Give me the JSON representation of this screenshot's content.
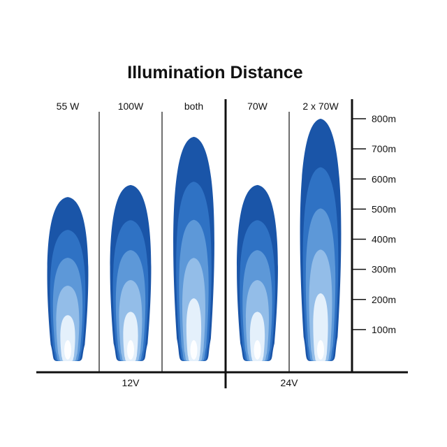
{
  "chart_data": {
    "type": "bar",
    "title": "Illumination Distance",
    "categories": [
      "55 W",
      "100W",
      "both",
      "70W",
      "2 x 70W"
    ],
    "groups": [
      {
        "label": "12V",
        "categories": [
          "55 W",
          "100W",
          "both"
        ]
      },
      {
        "label": "24V",
        "categories": [
          "70W",
          "2 x 70W"
        ]
      }
    ],
    "values": [
      540,
      580,
      740,
      580,
      800
    ],
    "y_ticks": [
      "100m",
      "200m",
      "300m",
      "400m",
      "500m",
      "600m",
      "700m",
      "800m"
    ],
    "y_tick_values": [
      100,
      200,
      300,
      400,
      500,
      600,
      700,
      800
    ],
    "ylim": [
      0,
      800
    ],
    "unit": "m",
    "grid": false,
    "colors": {
      "outer": "#1a55a8",
      "band2": "#2f72c4",
      "band3": "#5d98d8",
      "band4": "#93bde8",
      "core": "#e4f0fb",
      "axis": "#111111"
    }
  }
}
